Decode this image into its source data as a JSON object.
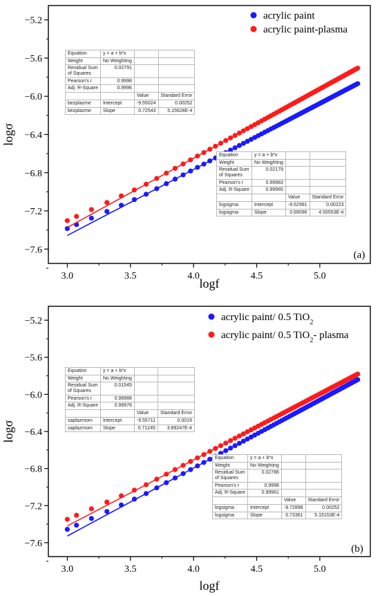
{
  "panels": [
    {
      "label": "(a)",
      "xlabel": "logf",
      "ylabel": "logσ",
      "xlim": [
        2.85,
        5.4
      ],
      "ylim": [
        -7.75,
        -5.05
      ],
      "xticks": [
        "3.0",
        "3.5",
        "4.0",
        "4.5",
        "5.0"
      ],
      "xtick_values": [
        3.0,
        3.5,
        4.0,
        4.5,
        5.0
      ],
      "yticks": [
        "-5.2",
        "-5.6",
        "-6.0",
        "-6.4",
        "-6.8",
        "-7.2",
        "-7.6"
      ],
      "ytick_values": [
        -5.2,
        -5.6,
        -6.0,
        -6.4,
        -6.8,
        -7.2,
        -7.6
      ],
      "legend": [
        {
          "name": "acrylic paint",
          "color": "#1a1aff"
        },
        {
          "name": "acrylic paint-plasma",
          "color": "#ff1a1a"
        }
      ],
      "series": [
        {
          "name": "acrylic paint",
          "color": "#1a1aff",
          "fit": {
            "intercept": -9.52991,
            "slope": 0.69096
          },
          "y_range": [
            -7.3,
            -5.7
          ]
        },
        {
          "name": "acrylic paint-plasma",
          "color": "#ff1a1a",
          "fit": {
            "intercept": -9.55024,
            "slope": 0.72543
          },
          "y_range": [
            -7.42,
            -5.87
          ]
        }
      ],
      "fit_tables": [
        {
          "name": "plasma-fit-table",
          "rows": [
            [
              "Equation",
              "y = a + b*x",
              "",
              ""
            ],
            [
              "Weight",
              "No Weighting",
              "",
              ""
            ],
            [
              "Residual Sum of Squares",
              "0.02791",
              "",
              ""
            ],
            [
              "Pearson's r",
              "0.9998",
              "",
              ""
            ],
            [
              "Adj. R-Square",
              "0.9996",
              "",
              ""
            ],
            [
              "",
              "",
              "Value",
              "Standard Error"
            ],
            [
              "bezplazme",
              "Intercept",
              "-9.55024",
              "0.00252"
            ],
            [
              "bezplazme",
              "Slope",
              "0.72543",
              "5.15628E-4"
            ]
          ]
        },
        {
          "name": "paint-fit-table",
          "rows": [
            [
              "Equation",
              "y = a + b*x",
              "",
              ""
            ],
            [
              "Weight",
              "No Weighting",
              "",
              ""
            ],
            [
              "Residual Sum of Squares",
              "0.02179",
              "",
              ""
            ],
            [
              "Pearson's r",
              "0.99983",
              "",
              ""
            ],
            [
              "Adj. R-Square",
              "0.99965",
              "",
              ""
            ],
            [
              "",
              "",
              "Value",
              "Standard Error"
            ],
            [
              "logsigma",
              "Intercept",
              "-9.52991",
              "0.00223"
            ],
            [
              "logsigma",
              "Slope",
              "0.69096",
              "4.55553E-4"
            ]
          ]
        }
      ]
    },
    {
      "label": "(b)",
      "xlabel": "logf",
      "ylabel": "logσ",
      "xlim": [
        2.85,
        5.4
      ],
      "ylim": [
        -7.75,
        -5.05
      ],
      "xticks": [
        "3.0",
        "3.5",
        "4.0",
        "4.5",
        "5.0"
      ],
      "xtick_values": [
        3.0,
        3.5,
        4.0,
        4.5,
        5.0
      ],
      "yticks": [
        "-5.2",
        "-5.6",
        "-6.0",
        "-6.4",
        "-6.8",
        "-7.2",
        "-7.6"
      ],
      "ytick_values": [
        -5.2,
        -5.6,
        -6.0,
        -6.4,
        -6.8,
        -7.2,
        -7.6
      ],
      "legend": [
        {
          "name": "acrylic paint/ 0.5 TiO",
          "sub": "2",
          "suffix": "",
          "color": "#1a1aff"
        },
        {
          "name": "acrylic paint/ 0.5 TiO",
          "sub": "2",
          "suffix": "- plasma",
          "color": "#ff1a1a"
        }
      ],
      "series": [
        {
          "name": "acrylic paint/ 0.5 TiO2",
          "color": "#1a1aff",
          "fit": {
            "intercept": -9.72898,
            "slope": 0.73361
          },
          "y_range": [
            -7.47,
            -5.84
          ]
        },
        {
          "name": "acrylic paint/ 0.5 TiO2- plasma",
          "color": "#ff1a1a",
          "fit": {
            "intercept": -9.55711,
            "slope": 0.71245
          },
          "y_range": [
            -7.37,
            -5.79
          ]
        }
      ],
      "fit_tables": [
        {
          "name": "plasma-fit-table",
          "rows": [
            [
              "Equation",
              "y = a + b*x",
              "",
              ""
            ],
            [
              "Weight",
              "No Weighting",
              "",
              ""
            ],
            [
              "Residual Sum of Squares",
              "0.01545",
              "",
              ""
            ],
            [
              "Pearson's r",
              "0.99988",
              "",
              ""
            ],
            [
              "Adj. R-Square",
              "0.99976",
              "",
              ""
            ],
            [
              "",
              "",
              "Value",
              "Standard Error"
            ],
            [
              "saplazmom",
              "Intercept",
              "-9.55711",
              "0.0019"
            ],
            [
              "saplazmom",
              "Slope",
              "0.71245",
              "3.89247E-4"
            ]
          ]
        },
        {
          "name": "paint-fit-table",
          "rows": [
            [
              "Equation",
              "y = a + b*x",
              "",
              ""
            ],
            [
              "Weight",
              "No Weighting",
              "",
              ""
            ],
            [
              "Residual Sum of Squares",
              "0.02786",
              "",
              ""
            ],
            [
              "Pearson's r",
              "0.9998",
              "",
              ""
            ],
            [
              "Adj. R-Square",
              "0.99961",
              "",
              ""
            ],
            [
              "",
              "",
              "Value",
              "Standard Error"
            ],
            [
              "logsigma",
              "Intercept",
              "-9.72898",
              "0.00252"
            ],
            [
              "logsigma",
              "Slope",
              "0.73361",
              "5.15153E-4"
            ]
          ]
        }
      ]
    }
  ],
  "chart_data": [
    {
      "type": "scatter",
      "title": "",
      "xlabel": "logf",
      "ylabel": "logσ",
      "xlim": [
        2.85,
        5.4
      ],
      "ylim": [
        -7.75,
        -5.05
      ],
      "grid": false,
      "legend_position": "top-right",
      "series": [
        {
          "name": "acrylic paint",
          "x": [
            3.0,
            3.5,
            4.0,
            4.5,
            5.0,
            5.3
          ],
          "y": [
            -7.3,
            -7.0,
            -6.7,
            -6.4,
            -5.9,
            -5.7
          ]
        },
        {
          "name": "acrylic paint-plasma",
          "x": [
            3.0,
            3.5,
            4.0,
            4.5,
            5.0,
            5.3
          ],
          "y": [
            -7.42,
            -7.1,
            -6.78,
            -6.46,
            -6.1,
            -5.87
          ]
        }
      ]
    },
    {
      "type": "scatter",
      "title": "",
      "xlabel": "logf",
      "ylabel": "logσ",
      "xlim": [
        2.85,
        5.4
      ],
      "ylim": [
        -7.75,
        -5.05
      ],
      "grid": false,
      "legend_position": "top-right",
      "series": [
        {
          "name": "acrylic paint/ 0.5 TiO2",
          "x": [
            3.0,
            3.5,
            4.0,
            4.5,
            5.0,
            5.3
          ],
          "y": [
            -7.47,
            -7.1,
            -6.78,
            -6.43,
            -6.06,
            -5.84
          ]
        },
        {
          "name": "acrylic paint/ 0.5 TiO2- plasma",
          "x": [
            3.0,
            3.5,
            4.0,
            4.5,
            5.0,
            5.3
          ],
          "y": [
            -7.37,
            -7.0,
            -6.69,
            -6.36,
            -6.0,
            -5.79
          ]
        }
      ]
    }
  ]
}
